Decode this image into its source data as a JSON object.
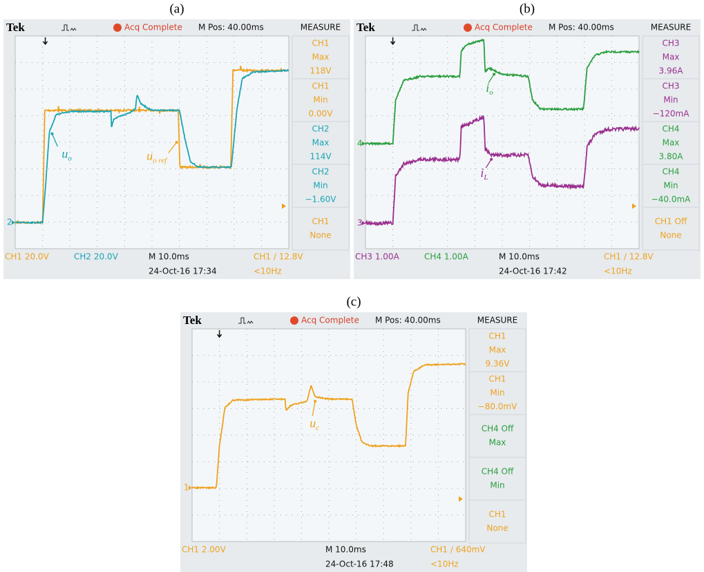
{
  "panels": [
    {
      "label": "(a)",
      "header": {
        "brand": "Tek",
        "status": "Acq Complete",
        "position": "M Pos: 40.00ms",
        "menu": "MEASURE"
      },
      "measures": [
        {
          "lines": [
            "CH1",
            "Max",
            "118V"
          ],
          "color": "#eea21f"
        },
        {
          "lines": [
            "CH1",
            "Min",
            "0.00V"
          ],
          "color": "#eea21f"
        },
        {
          "lines": [
            "CH2",
            "Max",
            "114V"
          ],
          "color": "#1ba3b3"
        },
        {
          "lines": [
            "CH2",
            "Min",
            "−1.60V"
          ],
          "color": "#1ba3b3"
        },
        {
          "lines": [
            "CH1",
            "None"
          ],
          "color": "#eea21f"
        }
      ],
      "footer": {
        "scales": [
          {
            "text": "CH1  20.0V",
            "color": "#eea21f"
          },
          {
            "text": "CH2  20.0V",
            "color": "#1ba3b3"
          }
        ],
        "timebase": "M 10.0ms",
        "date": "24-Oct-16 17:34",
        "trigger": "CH1 ∕ 12.8V",
        "frequency": "<10Hz",
        "trigger_color": "#eea21f"
      },
      "markers": [
        {
          "text": "2",
          "color": "#1ba3b3"
        }
      ],
      "annotations": [
        {
          "main": "u",
          "sub": "o",
          "color": "#1ba3b3"
        },
        {
          "main": "u",
          "sub": "o ref",
          "color": "#eea21f"
        }
      ]
    },
    {
      "label": "(b)",
      "header": {
        "brand": "Tek",
        "status": "Acq Complete",
        "position": "M Pos: 40.00ms",
        "menu": "MEASURE"
      },
      "measures": [
        {
          "lines": [
            "CH3",
            "Max",
            "3.96A"
          ],
          "color": "#9a2f8e"
        },
        {
          "lines": [
            "CH3",
            "Min",
            "−120mA"
          ],
          "color": "#9a2f8e"
        },
        {
          "lines": [
            "CH4",
            "Max",
            "3.80A"
          ],
          "color": "#2a9e3e"
        },
        {
          "lines": [
            "CH4",
            "Min",
            "−40.0mA"
          ],
          "color": "#2a9e3e"
        },
        {
          "lines": [
            "CH1 Off",
            "None"
          ],
          "color": "#eea21f"
        }
      ],
      "footer": {
        "scales": [
          {
            "text": "CH3  1.00A",
            "color": "#9a2f8e"
          },
          {
            "text": "CH4  1.00A",
            "color": "#2a9e3e"
          }
        ],
        "timebase": "M 10.0ms",
        "date": "24-Oct-16 17:42",
        "trigger": "CH1 ∕ 12.8V",
        "frequency": "<10Hz",
        "trigger_color": "#eea21f"
      },
      "markers": [
        {
          "text": "4",
          "color": "#2a9e3e"
        },
        {
          "text": "3",
          "color": "#9a2f8e"
        }
      ],
      "annotations": [
        {
          "main": "i",
          "sub": "o",
          "color": "#2a9e3e"
        },
        {
          "main": "i",
          "sub": "L",
          "color": "#9a2f8e"
        }
      ]
    },
    {
      "label": "(c)",
      "header": {
        "brand": "Tek",
        "status": "Acq Complete",
        "position": "M Pos: 40.00ms",
        "menu": "MEASURE"
      },
      "measures": [
        {
          "lines": [
            "CH1",
            "Max",
            "9.36V"
          ],
          "color": "#eea21f"
        },
        {
          "lines": [
            "CH1",
            "Min",
            "−80.0mV"
          ],
          "color": "#eea21f"
        },
        {
          "lines": [
            "CH4 Off",
            "Max"
          ],
          "color": "#2a9e3e"
        },
        {
          "lines": [
            "CH4 Off",
            "Min"
          ],
          "color": "#2a9e3e"
        },
        {
          "lines": [
            "CH1",
            "None"
          ],
          "color": "#eea21f"
        }
      ],
      "footer": {
        "scales": [
          {
            "text": "CH1  2.00V",
            "color": "#eea21f"
          }
        ],
        "timebase": "M 10.0ms",
        "date": "24-Oct-16 17:48",
        "trigger": "CH1 ∕ 640mV",
        "frequency": "<10Hz",
        "trigger_color": "#eea21f"
      },
      "markers": [
        {
          "text": "1",
          "color": "#eea21f"
        }
      ],
      "annotations": [
        {
          "main": "u",
          "sub": "c",
          "color": "#eea21f"
        }
      ]
    }
  ]
}
